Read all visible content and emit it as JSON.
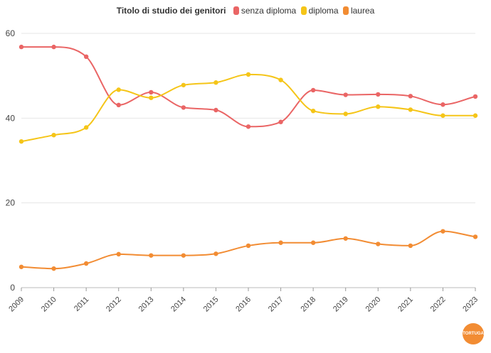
{
  "chart_data": {
    "type": "line",
    "title": "Titolo di studio dei genitori",
    "xlabel": "",
    "ylabel": "",
    "x": [
      "2009",
      "2010",
      "2011",
      "2012",
      "2013",
      "2014",
      "2015",
      "2016",
      "2017",
      "2018",
      "2019",
      "2020",
      "2021",
      "2022",
      "2023"
    ],
    "ylim": [
      0,
      60
    ],
    "yticks": [
      0,
      20,
      40,
      60
    ],
    "grid": true,
    "legend_position": "top",
    "series": [
      {
        "name": "senza diploma",
        "color": "#ea6565",
        "values": [
          56.8,
          56.8,
          54.5,
          43.1,
          46.1,
          42.5,
          41.9,
          38.0,
          39.1,
          46.6,
          45.5,
          45.6,
          45.2,
          43.2,
          45.1
        ]
      },
      {
        "name": "diploma",
        "color": "#f5c518",
        "values": [
          34.5,
          36.0,
          37.8,
          46.7,
          44.8,
          47.8,
          48.4,
          50.3,
          49.0,
          41.7,
          41.0,
          42.7,
          42.0,
          40.6,
          40.6
        ]
      },
      {
        "name": "laurea",
        "color": "#f28c33",
        "values": [
          4.9,
          4.5,
          5.7,
          7.9,
          7.6,
          7.6,
          8.0,
          9.9,
          10.6,
          10.6,
          11.6,
          10.3,
          9.9,
          13.3,
          12.0
        ]
      }
    ]
  },
  "logo_text": "TORTUGA"
}
